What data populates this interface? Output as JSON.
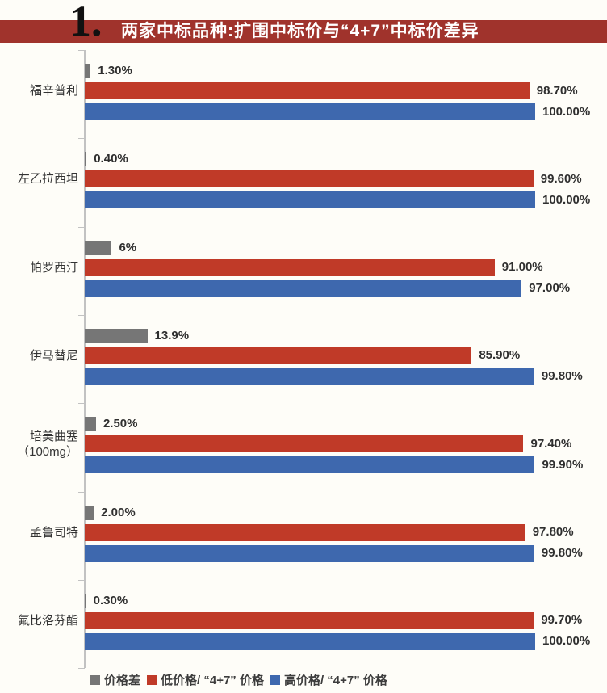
{
  "page": {
    "background": "#fefdf8"
  },
  "header": {
    "number": "1.",
    "title": "两家中标品种:扩围中标价与“4+7”中标价差异",
    "banner_color": "#a0332c",
    "title_color": "#ffffff"
  },
  "chart_data": {
    "type": "bar",
    "orientation": "horizontal",
    "title": "两家中标品种:扩围中标价与“4+7”中标价差异",
    "xlim": [
      0,
      100
    ],
    "unit": "%",
    "grid": false,
    "legend_position": "bottom",
    "axis_color": "#c2c2c2",
    "categories": [
      "福辛普利",
      "左乙拉西坦",
      "帕罗西汀",
      "伊马替尼",
      "培美曲塞\n（100mg）",
      "孟鲁司特",
      "氟比洛芬酯"
    ],
    "series": [
      {
        "name": "价格差",
        "color": "#767676",
        "values": [
          1.3,
          0.4,
          6,
          13.9,
          2.5,
          2.0,
          0.3
        ],
        "labels": [
          "1.30%",
          "0.40%",
          "6%",
          "13.9%",
          "2.50%",
          "2.00%",
          "0.30%"
        ]
      },
      {
        "name": "低价格/ “4+7” 价格",
        "color": "#c03a28",
        "values": [
          98.7,
          99.6,
          91.0,
          85.9,
          97.4,
          97.8,
          99.7
        ],
        "labels": [
          "98.70%",
          "99.60%",
          "91.00%",
          "85.90%",
          "97.40%",
          "97.80%",
          "99.70%"
        ]
      },
      {
        "name": "高价格/ “4+7” 价格",
        "color": "#3e68ae",
        "values": [
          100.0,
          100.0,
          97.0,
          99.8,
          99.9,
          99.8,
          100.0
        ],
        "labels": [
          "100.00%",
          "100.00%",
          "97.00%",
          "99.80%",
          "99.90%",
          "99.80%",
          "100.00%"
        ]
      }
    ]
  }
}
